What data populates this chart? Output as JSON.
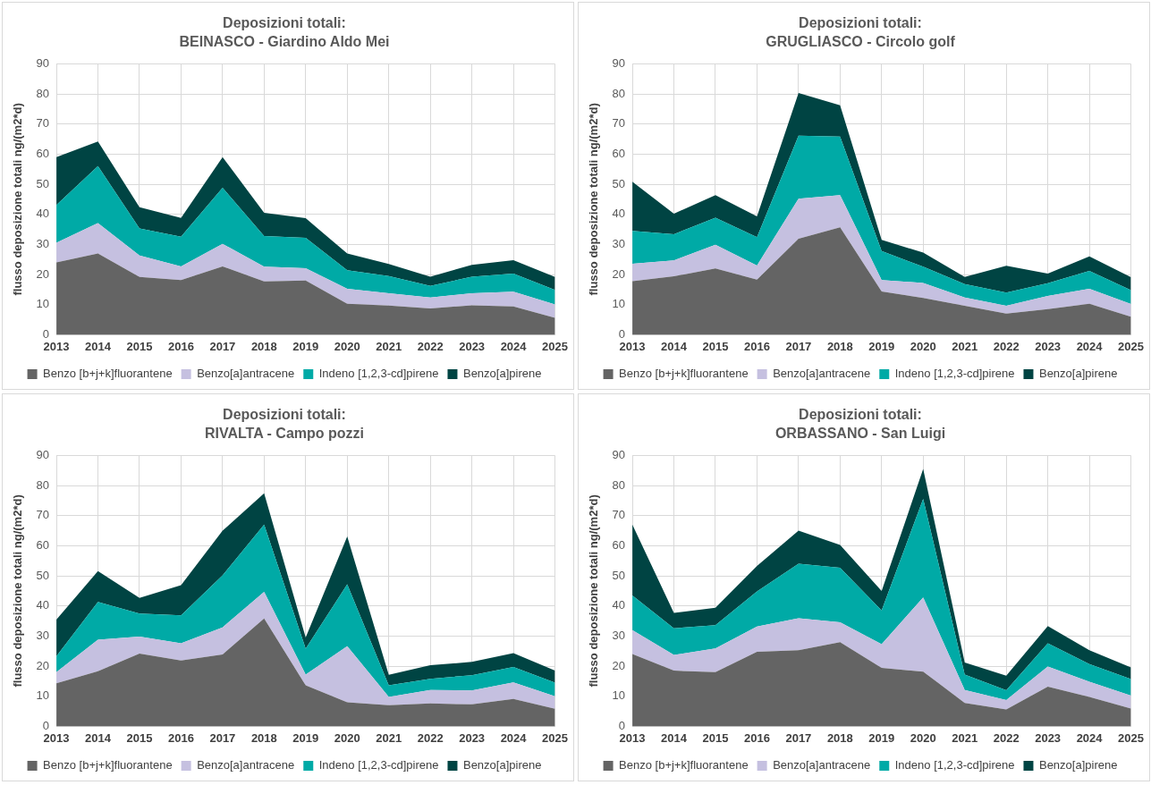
{
  "chart_data": [
    {
      "type": "area",
      "title": "Deposizioni totali:",
      "subtitle": "BEINASCO - Giardino Aldo Mei",
      "ylabel": "flusso deposizione totali ng/(m2*d)",
      "categories": [
        "2013",
        "2014",
        "2015",
        "2016",
        "2017",
        "2018",
        "2019",
        "2020",
        "2021",
        "2022",
        "2023",
        "2024",
        "2025"
      ],
      "stacked": true,
      "ylim": [
        0,
        90
      ],
      "yticks": [
        0,
        10,
        20,
        30,
        40,
        50,
        60,
        70,
        80,
        90
      ],
      "grid": true,
      "legend": "bottom",
      "marker": "none",
      "series": [
        {
          "name": "Benzo [b+j+k]fluorantene",
          "color": "#646464",
          "values": [
            24,
            27,
            19.2,
            18.2,
            22.7,
            17.7,
            18,
            10.3,
            9.7,
            8.7,
            9.8,
            9.4,
            5.6
          ]
        },
        {
          "name": "Benzo[a]antracene",
          "color": "#c5c0e0",
          "values": [
            6.6,
            10.1,
            7.1,
            4.5,
            7.5,
            4.9,
            4.1,
            5.0,
            4.1,
            3.7,
            4.0,
            4.9,
            4.5
          ]
        },
        {
          "name": "Indeno [1,2,3-cd]pirene",
          "color": "#00aaa6",
          "values": [
            12.5,
            18.9,
            9.0,
            9.9,
            18.6,
            10.2,
            10.1,
            6.1,
            5.7,
            3.8,
            5.5,
            6.0,
            4.8
          ]
        },
        {
          "name": "Benzo[a]pirene",
          "color": "#004443",
          "values": [
            15.9,
            8.2,
            7.1,
            6.2,
            10.2,
            7.7,
            6.5,
            5.6,
            4.0,
            3.1,
            3.9,
            4.5,
            4.3
          ]
        }
      ]
    },
    {
      "type": "area",
      "title": "Deposizioni totali:",
      "subtitle": "GRUGLIASCO - Circolo golf",
      "ylabel": "flusso deposizione totali ng/(m2*d)",
      "categories": [
        "2013",
        "2014",
        "2015",
        "2016",
        "2017",
        "2018",
        "2019",
        "2020",
        "2021",
        "2022",
        "2023",
        "2024",
        "2025"
      ],
      "stacked": true,
      "ylim": [
        0,
        90
      ],
      "yticks": [
        0,
        10,
        20,
        30,
        40,
        50,
        60,
        70,
        80,
        90
      ],
      "grid": true,
      "legend": "bottom",
      "marker": "none",
      "series": [
        {
          "name": "Benzo [b+j+k]fluorantene",
          "color": "#646464",
          "values": [
            17.8,
            19.4,
            22,
            18.3,
            31.9,
            35.7,
            14.4,
            12.2,
            9.6,
            7,
            8.5,
            10.3,
            6
          ]
        },
        {
          "name": "Benzo[a]antracene",
          "color": "#c5c0e0",
          "values": [
            5.8,
            5.3,
            7.9,
            4.7,
            13.3,
            10.7,
            3.8,
            5.0,
            2.8,
            2.6,
            4.4,
            5.0,
            4.2
          ]
        },
        {
          "name": "Indeno [1,2,3-cd]pirene",
          "color": "#00aaa6",
          "values": [
            10.9,
            8.7,
            9.0,
            9.4,
            20.9,
            19.4,
            9.6,
            5.4,
            4.4,
            4.4,
            4.2,
            5.9,
            4.6
          ]
        },
        {
          "name": "Benzo[a]pirene",
          "color": "#004443",
          "values": [
            16.3,
            6.8,
            7.5,
            6.9,
            14.2,
            10.4,
            3.7,
            4.7,
            2.4,
            8.9,
            3.2,
            4.8,
            4.3
          ]
        }
      ]
    },
    {
      "type": "area",
      "title": "Deposizioni totali:",
      "subtitle": "RIVALTA - Campo pozzi",
      "ylabel": "flusso deposizione totali ng/(m2*d)",
      "categories": [
        "2013",
        "2014",
        "2015",
        "2016",
        "2017",
        "2018",
        "2019",
        "2020",
        "2021",
        "2022",
        "2023",
        "2024",
        "2025"
      ],
      "stacked": true,
      "ylim": [
        0,
        90
      ],
      "yticks": [
        0,
        10,
        20,
        30,
        40,
        50,
        60,
        70,
        80,
        90
      ],
      "grid": true,
      "legend": "bottom",
      "marker": "none",
      "series": [
        {
          "name": "Benzo [b+j+k]fluorantene",
          "color": "#646464",
          "values": [
            14.3,
            18.3,
            24.2,
            21.9,
            23.9,
            35.8,
            13.6,
            8,
            7,
            7.6,
            7.3,
            9.1,
            5.8
          ]
        },
        {
          "name": "Benzo[a]antracene",
          "color": "#c5c0e0",
          "values": [
            3.7,
            10.5,
            5.6,
            5.7,
            9.0,
            8.9,
            3.6,
            18.6,
            2.8,
            4.5,
            4.6,
            5.5,
            4.2
          ]
        },
        {
          "name": "Indeno [1,2,3-cd]pirene",
          "color": "#00aaa6",
          "values": [
            5.3,
            12.5,
            7.7,
            9.3,
            17.3,
            22.3,
            8.6,
            20.6,
            3.8,
            3.7,
            5.1,
            5.1,
            4.5
          ]
        },
        {
          "name": "Benzo[a]pirene",
          "color": "#004443",
          "values": [
            12.2,
            10.3,
            5.2,
            10.0,
            14.8,
            10.4,
            3.7,
            15.9,
            3.5,
            4.5,
            4.4,
            4.6,
            4.0
          ]
        }
      ]
    },
    {
      "type": "area",
      "title": "Deposizioni totali:",
      "subtitle": "ORBASSANO - San Luigi",
      "ylabel": "flusso deposizione totali ng/(m2*d)",
      "categories": [
        "2013",
        "2014",
        "2015",
        "2016",
        "2017",
        "2018",
        "2019",
        "2020",
        "2021",
        "2022",
        "2023",
        "2024",
        "2025"
      ],
      "stacked": true,
      "ylim": [
        0,
        90
      ],
      "yticks": [
        0,
        10,
        20,
        30,
        40,
        50,
        60,
        70,
        80,
        90
      ],
      "grid": true,
      "legend": "bottom",
      "marker": "none",
      "series": [
        {
          "name": "Benzo [b+j+k]fluorantene",
          "color": "#646464",
          "values": [
            24,
            18.5,
            18,
            24.8,
            25.3,
            28,
            19.4,
            18.2,
            7.8,
            5.6,
            13.2,
            9.8,
            5.9
          ]
        },
        {
          "name": "Benzo[a]antracene",
          "color": "#c5c0e0",
          "values": [
            8.0,
            5.2,
            7.9,
            8.4,
            10.6,
            6.6,
            7.9,
            24.6,
            4.3,
            3.1,
            6.7,
            5.0,
            4.3
          ]
        },
        {
          "name": "Indeno [1,2,3-cd]pirene",
          "color": "#00aaa6",
          "values": [
            11.5,
            8.9,
            7.7,
            11.6,
            18.1,
            18.1,
            11.2,
            32.8,
            5.1,
            3.3,
            7.7,
            5.9,
            5.5
          ]
        },
        {
          "name": "Benzo[a]pirene",
          "color": "#004443",
          "values": [
            23.5,
            5.1,
            5.8,
            8.5,
            11.0,
            7.6,
            6.5,
            9.9,
            4.0,
            4.8,
            5.7,
            4.6,
            3.9
          ]
        }
      ]
    }
  ]
}
